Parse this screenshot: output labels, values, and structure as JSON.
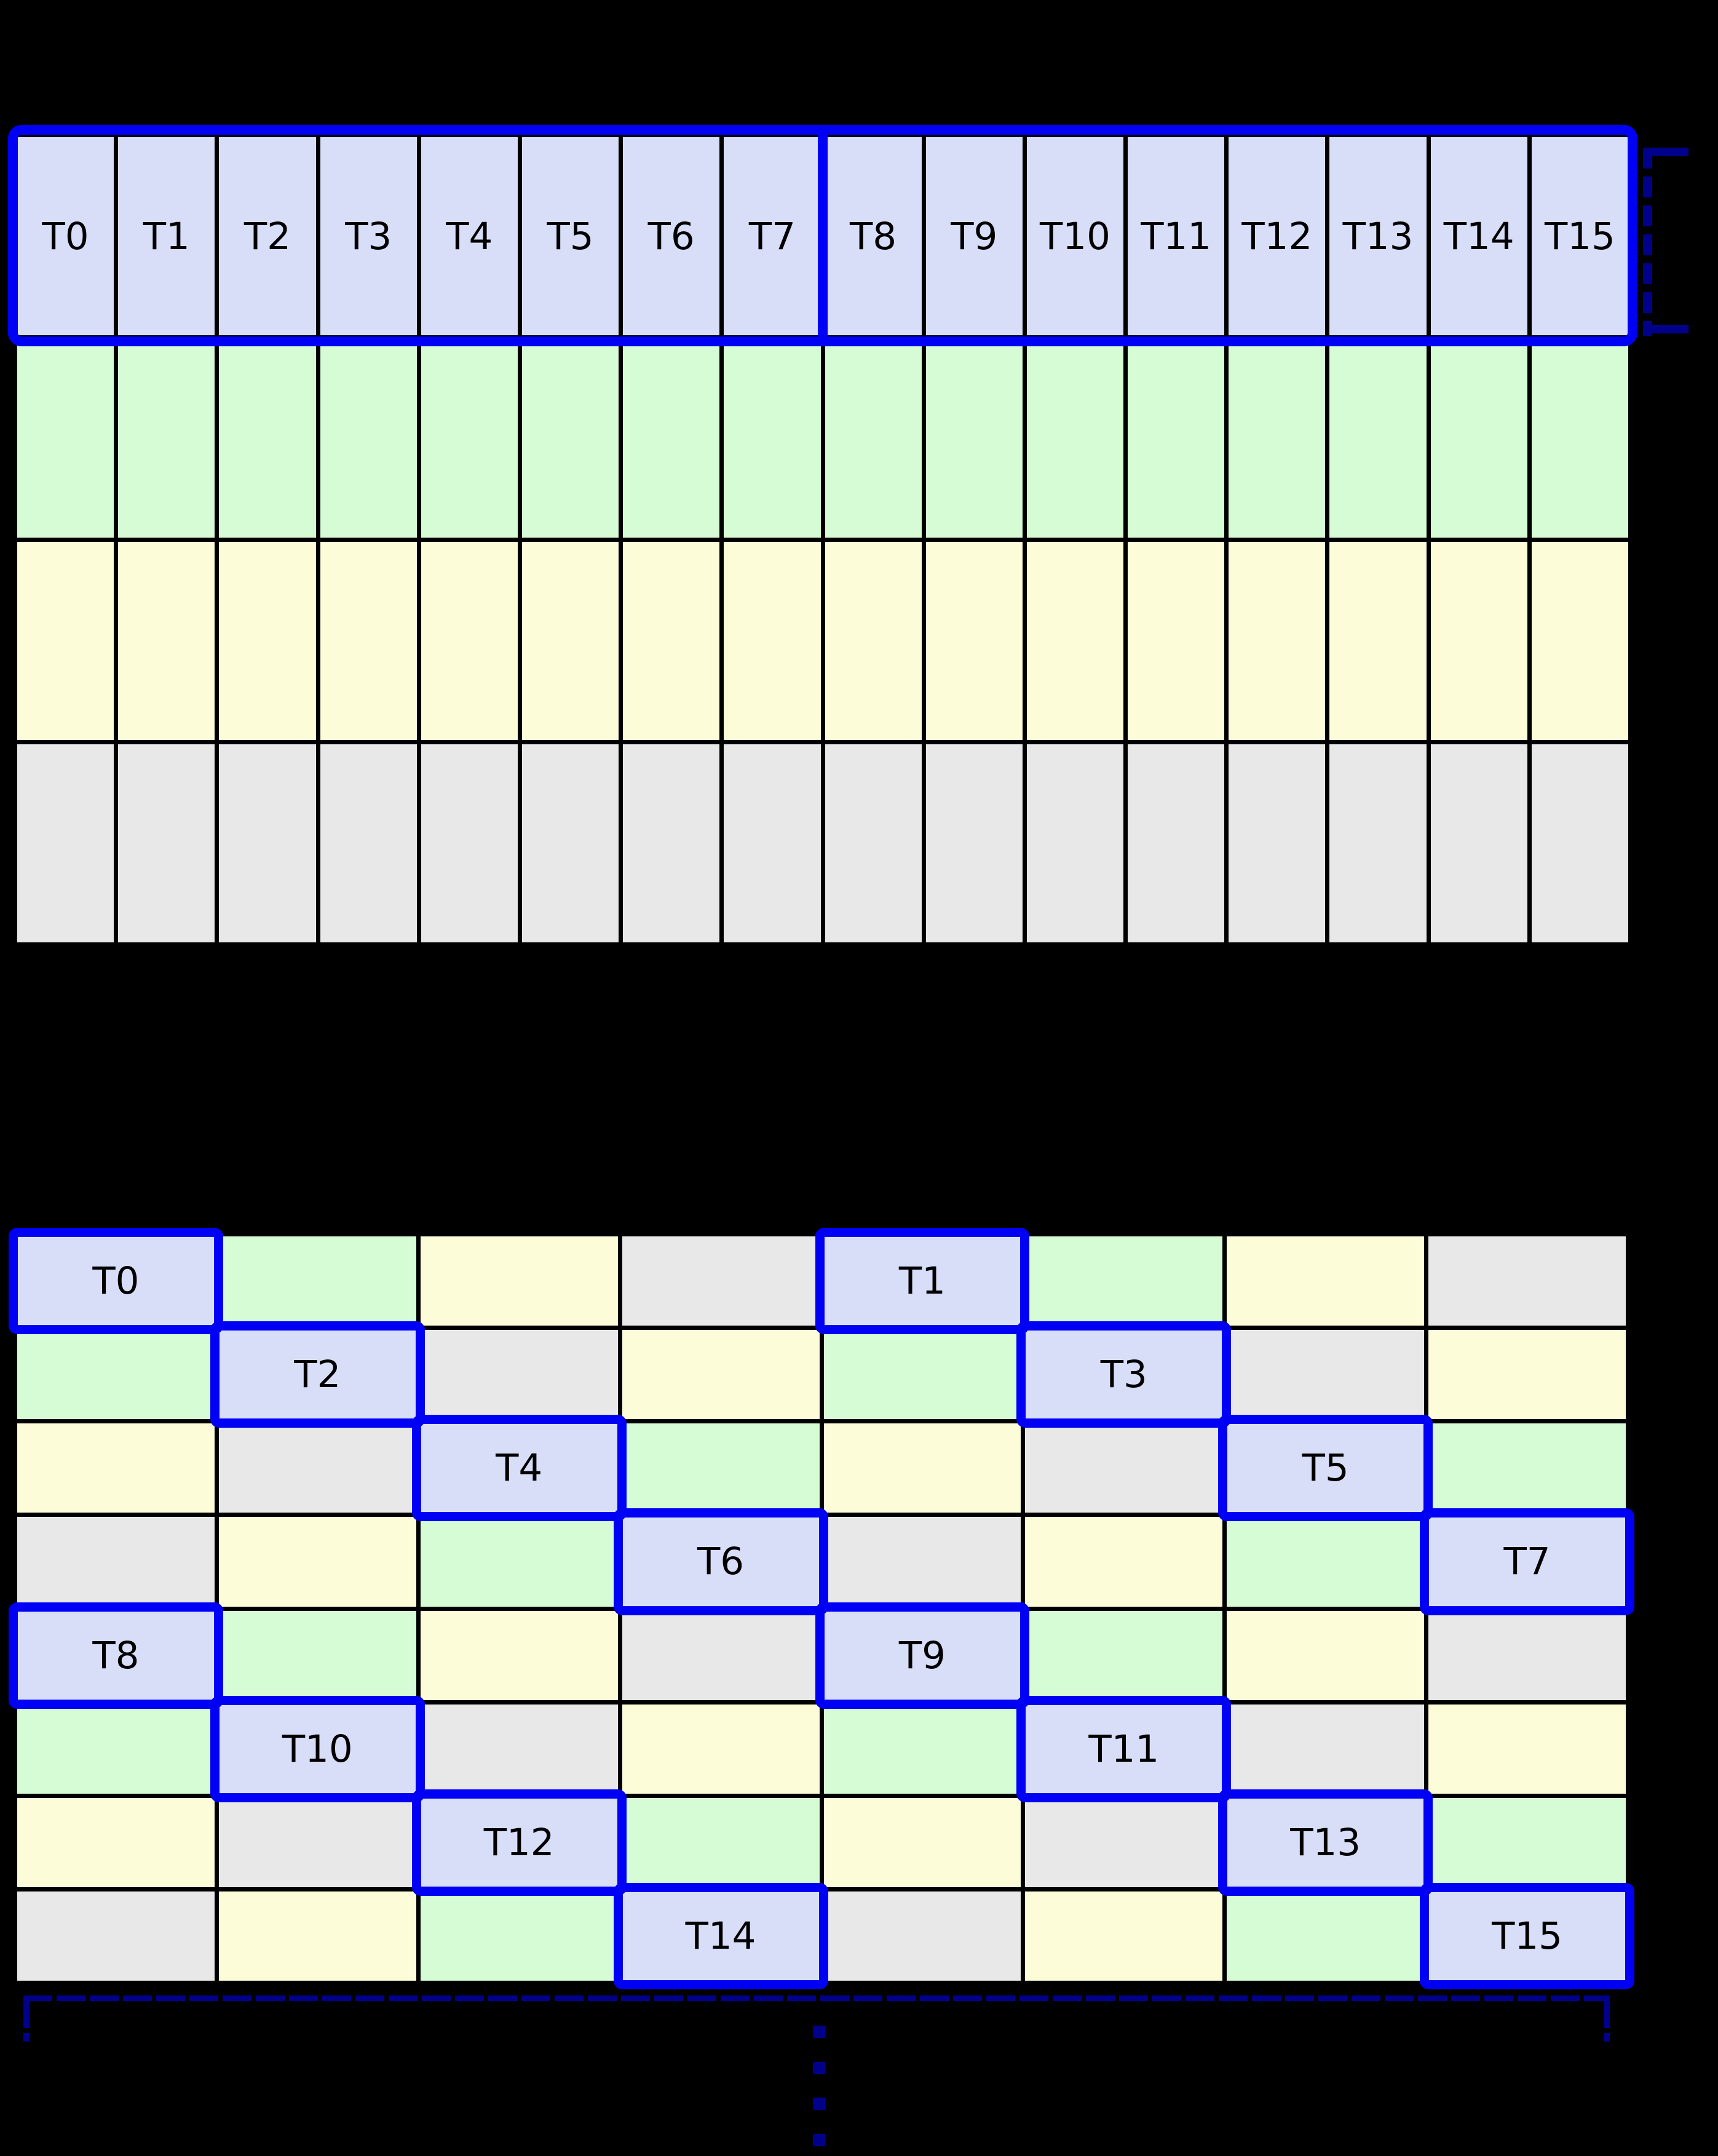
{
  "figure": {
    "background": "#000000",
    "colors": {
      "thread": "#d8def8",
      "green": "#d6fcd6",
      "yellow": "#fdfcd8",
      "gray": "#e8e8e8",
      "highlight": "#0000f5",
      "bracket": "#00008b",
      "grid_line": "#000000",
      "label_text": "#000000"
    }
  },
  "top_grid": {
    "rows": 4,
    "cols": 16,
    "row_colors": [
      "thread",
      "green",
      "yellow",
      "gray"
    ],
    "thread_labels": [
      "T0",
      "T1",
      "T2",
      "T3",
      "T4",
      "T5",
      "T6",
      "T7",
      "T8",
      "T9",
      "T10",
      "T11",
      "T12",
      "T13",
      "T14",
      "T15"
    ],
    "half_split_after_col": 8
  },
  "bottom_grid": {
    "rows": 8,
    "cols": 8,
    "cell_colors": [
      [
        "thread",
        "green",
        "yellow",
        "gray",
        "thread",
        "green",
        "yellow",
        "gray"
      ],
      [
        "green",
        "thread",
        "gray",
        "yellow",
        "green",
        "thread",
        "gray",
        "yellow"
      ],
      [
        "yellow",
        "gray",
        "thread",
        "green",
        "yellow",
        "gray",
        "thread",
        "green"
      ],
      [
        "gray",
        "yellow",
        "green",
        "thread",
        "gray",
        "yellow",
        "green",
        "thread"
      ],
      [
        "thread",
        "green",
        "yellow",
        "gray",
        "thread",
        "green",
        "yellow",
        "gray"
      ],
      [
        "green",
        "thread",
        "gray",
        "yellow",
        "green",
        "thread",
        "gray",
        "yellow"
      ],
      [
        "yellow",
        "gray",
        "thread",
        "green",
        "yellow",
        "gray",
        "thread",
        "green"
      ],
      [
        "gray",
        "yellow",
        "green",
        "thread",
        "gray",
        "yellow",
        "green",
        "thread"
      ]
    ],
    "thread_cells": [
      {
        "row": 0,
        "col": 0,
        "label": "T0"
      },
      {
        "row": 0,
        "col": 4,
        "label": "T1"
      },
      {
        "row": 1,
        "col": 1,
        "label": "T2"
      },
      {
        "row": 1,
        "col": 5,
        "label": "T3"
      },
      {
        "row": 2,
        "col": 2,
        "label": "T4"
      },
      {
        "row": 2,
        "col": 6,
        "label": "T5"
      },
      {
        "row": 3,
        "col": 3,
        "label": "T6"
      },
      {
        "row": 3,
        "col": 7,
        "label": "T7"
      },
      {
        "row": 4,
        "col": 0,
        "label": "T8"
      },
      {
        "row": 4,
        "col": 4,
        "label": "T9"
      },
      {
        "row": 5,
        "col": 1,
        "label": "T10"
      },
      {
        "row": 5,
        "col": 5,
        "label": "T11"
      },
      {
        "row": 6,
        "col": 2,
        "label": "T12"
      },
      {
        "row": 6,
        "col": 6,
        "label": "T13"
      },
      {
        "row": 7,
        "col": 3,
        "label": "T14"
      },
      {
        "row": 7,
        "col": 7,
        "label": "T15"
      }
    ],
    "ellipsis_dots": 4
  }
}
